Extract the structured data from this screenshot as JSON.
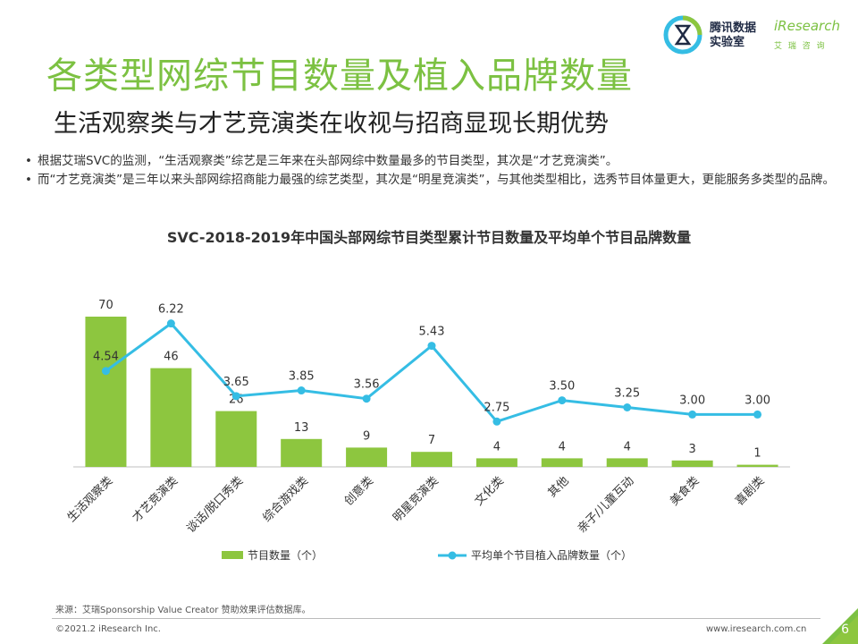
{
  "logos": {
    "tencent": "腾讯数据\n实验室",
    "iresearch": "iResearch",
    "iresearch_sub": "艾 瑞 咨 询"
  },
  "title": "各类型网综节目数量及植入品牌数量",
  "subtitle": "生活观察类与才艺竞演类在收视与招商显现长期优势",
  "bullets": [
    "根据艾瑞SVC的监测，“生活观察类”综艺是三年来在头部网综中数量最多的节目类型，其次是“才艺竞演类”。",
    "而“才艺竞演类”是三年以来头部网综招商能力最强的综艺类型，其次是“明星竞演类”，与其他类型相比，选秀节目体量更大，更能服务多类型的品牌。"
  ],
  "colors": {
    "bar": "#8dc63f",
    "line": "#35bde4",
    "accent": "#7cc142"
  },
  "chart_data": {
    "type": "bar",
    "title": "SVC-2018-2019年中国头部网综节目类型累计节目数量及平均单个节目品牌数量",
    "categories": [
      "生活观察类",
      "才艺竞演类",
      "谈话/脱口秀类",
      "综合游戏类",
      "创意类",
      "明星竞演类",
      "文化类",
      "其他",
      "亲子/儿童互动",
      "美食类",
      "喜剧类"
    ],
    "series": [
      {
        "name": "节目数量（个）",
        "type": "bar",
        "values": [
          70,
          46,
          26,
          13,
          9,
          7,
          4,
          4,
          4,
          3,
          1
        ],
        "labels": [
          "70",
          "46",
          "26",
          "13",
          "9",
          "7",
          "4",
          "4",
          "4",
          "3",
          "1"
        ]
      },
      {
        "name": "平均单个节目植入品牌数量（个）",
        "type": "line",
        "values": [
          4.54,
          6.22,
          3.65,
          3.85,
          3.56,
          5.43,
          2.75,
          3.5,
          3.25,
          3.0,
          3.0
        ],
        "labels": [
          "4.54",
          "6.22",
          "3.65",
          "3.85",
          "3.56",
          "5.43",
          "2.75",
          "3.50",
          "3.25",
          "3.00",
          "3.00"
        ]
      }
    ],
    "legend_position": "bottom"
  },
  "footer": {
    "source": "来源：艾瑞Sponsorship Value Creator 赞助效果评估数据库。",
    "copyright": "©2021.2 iResearch Inc.",
    "url": "www.iresearch.com.cn",
    "page": "6"
  }
}
